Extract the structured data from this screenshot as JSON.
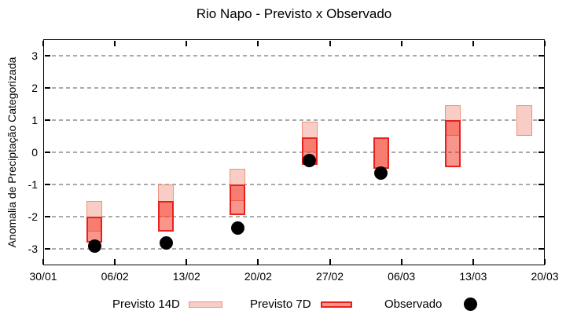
{
  "title": "Rio Napo - Previsto x Observado",
  "y_axis": {
    "label": "Anomalia de Preciptação Categorizada",
    "ticks": [
      3,
      2,
      1,
      0,
      -1,
      -2,
      -3
    ]
  },
  "x_axis": {
    "tick_labels": [
      "30/01",
      "06/02",
      "13/02",
      "20/02",
      "27/02",
      "06/03",
      "13/03",
      "20/03"
    ],
    "tick_days": [
      0,
      7,
      14,
      21,
      28,
      35,
      42,
      49
    ]
  },
  "legend": {
    "items": [
      {
        "label": "Previsto 14D",
        "swatch": "box-light"
      },
      {
        "label": "Previsto 7D",
        "swatch": "box-dark"
      },
      {
        "label": "Observado",
        "swatch": "dot"
      }
    ]
  },
  "colors": {
    "previsto14d_fill": "#f8cdc6",
    "previsto14d_border": "#f0907e",
    "previsto7d_fill": "rgba(243,45,25,0.5)",
    "previsto7d_border": "#e7211d",
    "observado": "#000000",
    "grid": "#aaaaaa",
    "axis": "#000000"
  },
  "chart_data": {
    "type": "bar",
    "subtype": "range-bars-with-scatter",
    "title": "Rio Napo - Previsto x Observado",
    "xlabel": "",
    "ylabel": "Anomalia de Preciptação Categorizada",
    "ylim": [
      -3.5,
      3.5
    ],
    "x_range_days": [
      0,
      49
    ],
    "x_tick_labels": [
      "30/01",
      "06/02",
      "13/02",
      "20/02",
      "27/02",
      "06/03",
      "13/03",
      "20/03"
    ],
    "grid": "dashed-horizontal",
    "legend_position": "below",
    "series": [
      {
        "name": "Previsto 14D",
        "type": "range-bar",
        "points": [
          {
            "date": "04/02",
            "day": 5,
            "high": -1.5,
            "low": -2.45
          },
          {
            "date": "11/02",
            "day": 12,
            "high": -1.0,
            "low": -2.0
          },
          {
            "date": "18/02",
            "day": 19,
            "high": -0.5,
            "low": -1.5
          },
          {
            "date": "25/02",
            "day": 26,
            "high": 0.95,
            "low": 0.0
          },
          {
            "date": "04/03",
            "day": 33,
            "high": 0.45,
            "low": -0.5
          },
          {
            "date": "11/03",
            "day": 40,
            "high": 1.45,
            "low": 0.5
          },
          {
            "date": "18/03",
            "day": 47,
            "high": 1.45,
            "low": 0.5
          }
        ]
      },
      {
        "name": "Previsto 7D",
        "type": "range-bar",
        "points": [
          {
            "date": "04/02",
            "day": 5,
            "high": -2.0,
            "low": -2.8
          },
          {
            "date": "11/02",
            "day": 12,
            "high": -1.5,
            "low": -2.45
          },
          {
            "date": "18/02",
            "day": 19,
            "high": -1.0,
            "low": -1.95
          },
          {
            "date": "25/02",
            "day": 26,
            "high": 0.45,
            "low": -0.4
          },
          {
            "date": "04/03",
            "day": 33,
            "high": 0.45,
            "low": -0.5
          },
          {
            "date": "11/03",
            "day": 40,
            "high": 1.0,
            "low": -0.45
          }
        ]
      },
      {
        "name": "Observado",
        "type": "scatter",
        "points": [
          {
            "date": "04/02",
            "day": 5,
            "value": -2.9
          },
          {
            "date": "11/02",
            "day": 12,
            "value": -2.8
          },
          {
            "date": "18/02",
            "day": 19,
            "value": -2.35
          },
          {
            "date": "25/02",
            "day": 26,
            "value": -0.25
          },
          {
            "date": "04/03",
            "day": 33,
            "value": -0.65
          }
        ]
      }
    ]
  }
}
